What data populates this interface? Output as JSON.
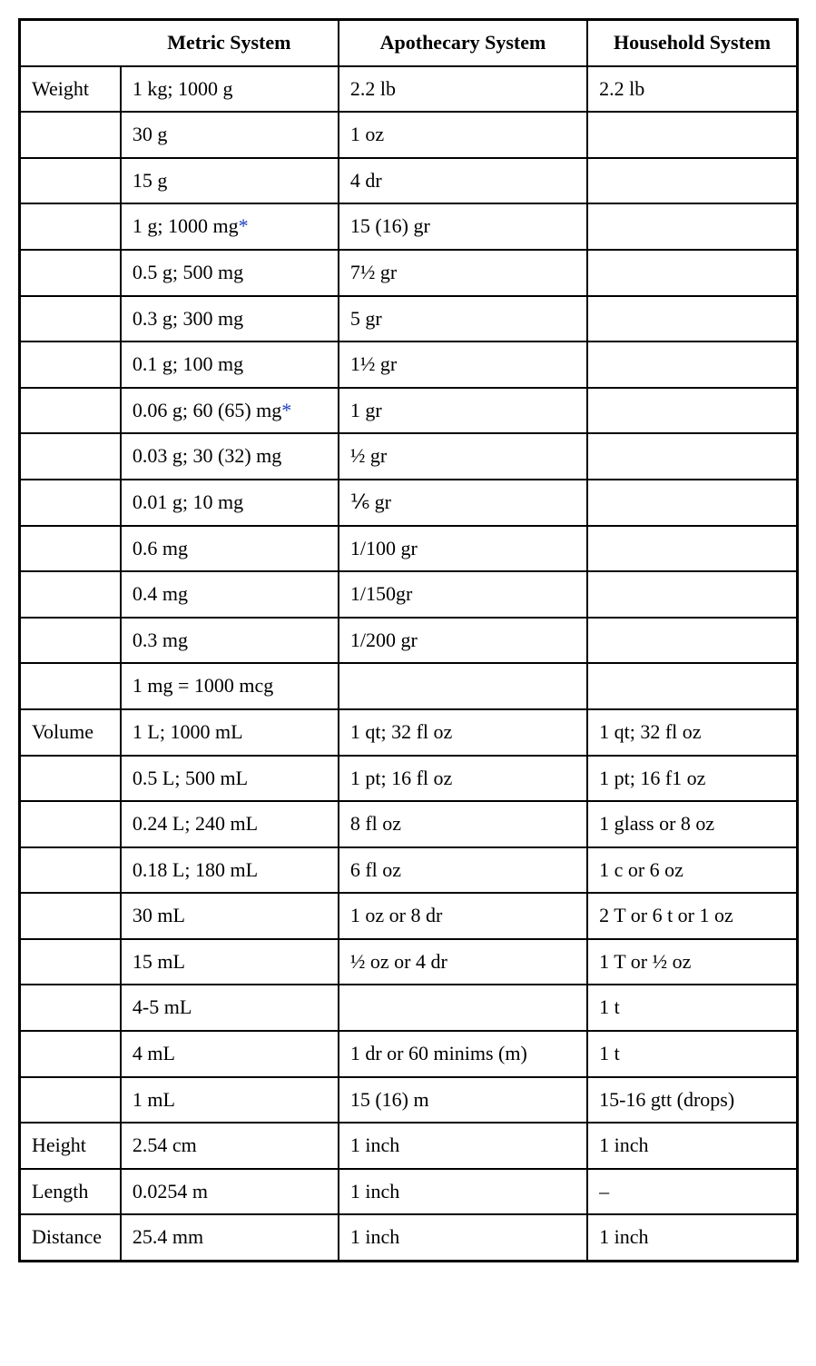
{
  "table": {
    "headers": {
      "col0": "",
      "col1": "Metric System",
      "col2": "Apothecary System",
      "col3": "Household System"
    },
    "rows": [
      {
        "c0": "Weight",
        "c1": "1 kg; 1000 g",
        "c1_star": false,
        "c2": "2.2 lb",
        "c3": "2.2 lb"
      },
      {
        "c0": "",
        "c1": "30 g",
        "c1_star": false,
        "c2": "1 oz",
        "c3": ""
      },
      {
        "c0": "",
        "c1": "15 g",
        "c1_star": false,
        "c2": "4 dr",
        "c3": ""
      },
      {
        "c0": "",
        "c1": "1 g; 1000 mg",
        "c1_star": true,
        "c2": "15 (16) gr",
        "c3": ""
      },
      {
        "c0": "",
        "c1": "0.5 g; 500 mg",
        "c1_star": false,
        "c2": "7½ gr",
        "c3": ""
      },
      {
        "c0": "",
        "c1": "0.3 g; 300 mg",
        "c1_star": false,
        "c2": "5 gr",
        "c3": ""
      },
      {
        "c0": "",
        "c1": "0.1 g; 100 mg",
        "c1_star": false,
        "c2": "1½ gr",
        "c3": ""
      },
      {
        "c0": "",
        "c1": "0.06 g; 60 (65) mg",
        "c1_star": true,
        "c2": "1 gr",
        "c3": ""
      },
      {
        "c0": "",
        "c1": "0.03 g; 30 (32) mg",
        "c1_star": false,
        "c2": "½ gr",
        "c3": ""
      },
      {
        "c0": "",
        "c1": "0.01 g; 10 mg",
        "c1_star": false,
        "c2": "⅙ gr",
        "c3": ""
      },
      {
        "c0": "",
        "c1": "0.6 mg",
        "c1_star": false,
        "c2": "1/100 gr",
        "c3": ""
      },
      {
        "c0": "",
        "c1": "0.4 mg",
        "c1_star": false,
        "c2": "1/150gr",
        "c3": ""
      },
      {
        "c0": "",
        "c1": "0.3 mg",
        "c1_star": false,
        "c2": "1/200 gr",
        "c3": ""
      },
      {
        "c0": "",
        "c1": "1 mg = 1000 mcg",
        "c1_star": false,
        "c2": "",
        "c3": ""
      },
      {
        "c0": "Volume",
        "c1": "1 L; 1000 mL",
        "c1_star": false,
        "c2": "1 qt; 32 fl oz",
        "c3": "1 qt; 32 fl oz"
      },
      {
        "c0": "",
        "c1": "0.5 L; 500 mL",
        "c1_star": false,
        "c2": "1 pt; 16 fl oz",
        "c3": "1 pt; 16 f1 oz"
      },
      {
        "c0": "",
        "c1": "0.24 L; 240 mL",
        "c1_star": false,
        "c2": "8 fl oz",
        "c3": "1 glass or 8 oz"
      },
      {
        "c0": "",
        "c1": "0.18 L; 180 mL",
        "c1_star": false,
        "c2": "6 fl oz",
        "c3": "1 c or 6 oz"
      },
      {
        "c0": "",
        "c1": "30 mL",
        "c1_star": false,
        "c2": "1 oz or 8 dr",
        "c3": "2 T or 6 t or 1 oz"
      },
      {
        "c0": "",
        "c1": "15 mL",
        "c1_star": false,
        "c2": "½ oz or 4 dr",
        "c3": "1 T or ½ oz"
      },
      {
        "c0": "",
        "c1": "4-5 mL",
        "c1_star": false,
        "c2": "",
        "c3": "1 t"
      },
      {
        "c0": "",
        "c1": "4 mL",
        "c1_star": false,
        "c2": "1 dr or 60 minims (m)",
        "c3": "1 t"
      },
      {
        "c0": "",
        "c1": "1 mL",
        "c1_star": false,
        "c2": "15 (16) m",
        "c3": "15-16 gtt (drops)"
      },
      {
        "c0": "Height",
        "c1": "2.54 cm",
        "c1_star": false,
        "c2": "1 inch",
        "c3": "1 inch"
      },
      {
        "c0": "Length",
        "c1": "0.0254 m",
        "c1_star": false,
        "c2": "1 inch",
        "c3": "–"
      },
      {
        "c0": "Distance",
        "c1": "25.4 mm",
        "c1_star": false,
        "c2": "1 inch",
        "c3": "1 inch"
      }
    ],
    "colors": {
      "asterisk": "#2040c0",
      "border": "#000000",
      "background": "#ffffff",
      "text": "#000000"
    },
    "font": {
      "family": "Palatino / Book Antiqua serif",
      "cell_size_pt": 16,
      "header_weight": "bold"
    },
    "column_widths_pct": [
      13,
      28,
      32,
      27
    ]
  }
}
